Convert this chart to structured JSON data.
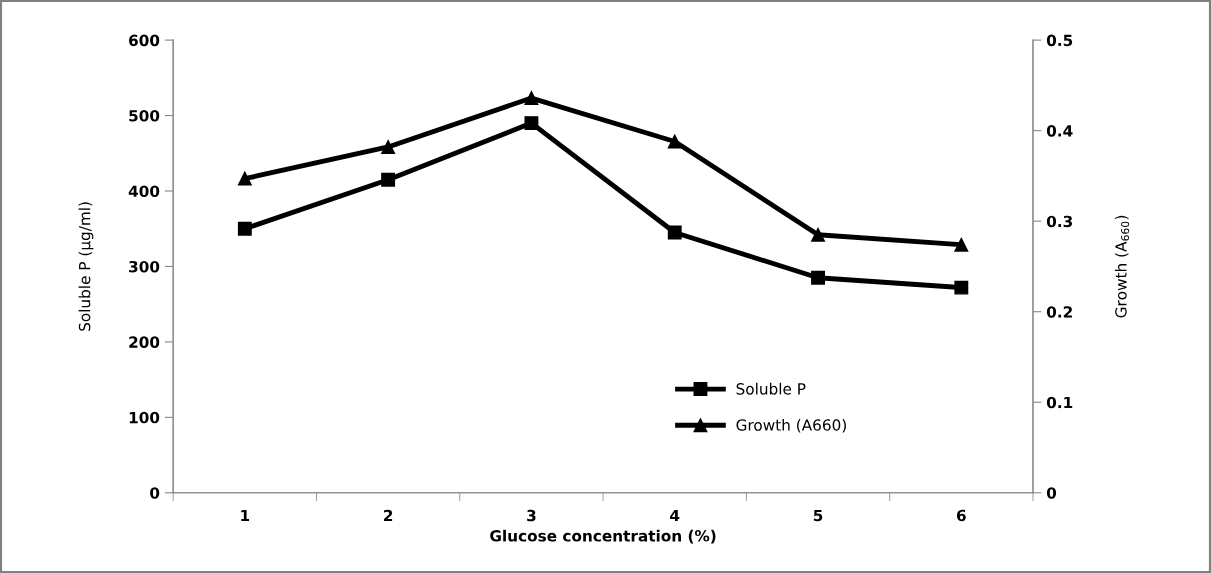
{
  "chart_data": {
    "type": "line",
    "xlabel": "Glucose concentration (%)",
    "ylabel": "Soluble P (µg/ml)",
    "y2label": "Growth (A$_{660}$)",
    "categories": [
      "1",
      "2",
      "3",
      "4",
      "5",
      "6"
    ],
    "series": [
      {
        "name": "Soluble P",
        "color": "#000000",
        "marker": "square",
        "values": [
          350,
          415,
          490,
          345,
          285,
          272
        ]
      },
      {
        "name": "Growth (A660)",
        "color": "#000000",
        "marker": "triangle",
        "axis": "y2",
        "values": [
          0.347,
          0.382,
          0.436,
          0.388,
          0.285,
          0.274
        ]
      }
    ],
    "ylim": [
      0,
      600
    ],
    "yticks": [
      0,
      100,
      200,
      300,
      400,
      500,
      600
    ],
    "y2lim": [
      0,
      0.5
    ],
    "y2ticks": [
      0,
      0.1,
      0.2,
      0.3,
      0.4,
      0.5
    ],
    "grid": false,
    "legend": "bottom right",
    "line_style": "solid"
  }
}
